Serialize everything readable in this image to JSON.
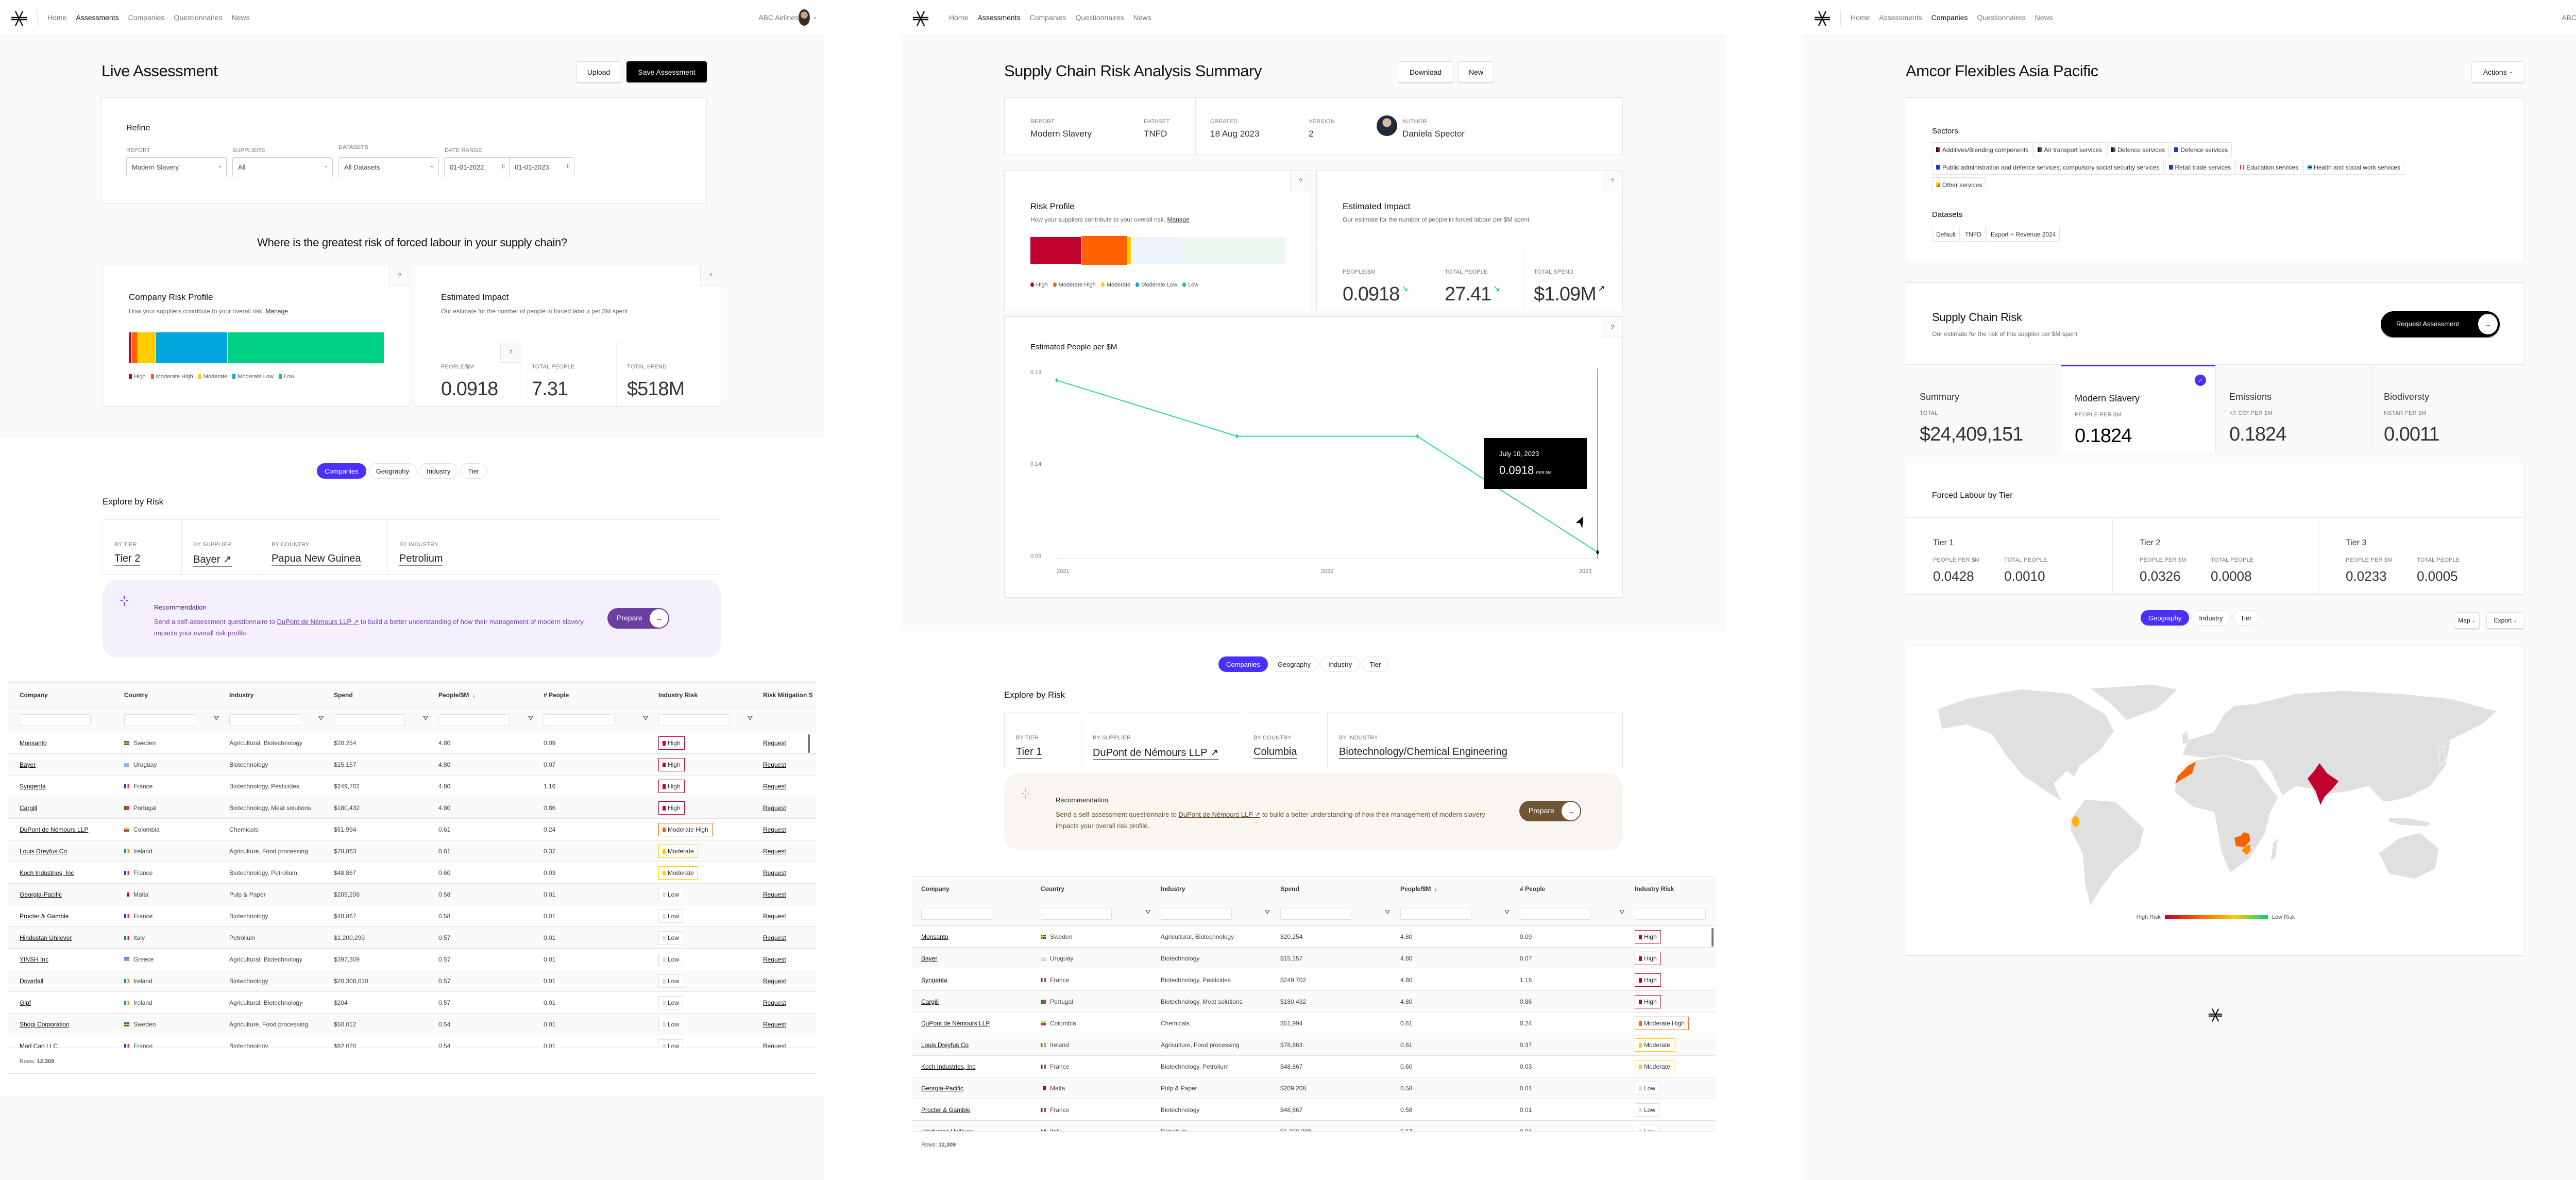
{
  "nav": {
    "items": [
      "Home",
      "Assessments",
      "Companies",
      "Questionnaires",
      "News"
    ],
    "account": "ABC Airlines",
    "icons": {
      "logo": "asterisk-logo",
      "avatar": "user-avatar",
      "caret": "chevron-down-icon"
    }
  },
  "colors": {
    "accent": "#4b2fff",
    "high": "#c0002d",
    "moderate_high": "#ff6000",
    "moderate": "#ffcc00",
    "moderate_low": "#00a8e0",
    "low": "#00d084",
    "low_badge": "#dddddd"
  },
  "risk_levels": [
    "High",
    "Moderate High",
    "Moderate",
    "Moderate Low",
    "Low"
  ],
  "live": {
    "active_nav": "Assessments",
    "title": "Live Assessment",
    "upload": "Upload",
    "save": "Save Assessment",
    "refine": {
      "title": "Refine",
      "fields": [
        {
          "label": "REPORT",
          "value": "Modern Slavery"
        },
        {
          "label": "SUPPLIERS",
          "value": "All"
        },
        {
          "label": "DATASETS",
          "value": "All Datasets"
        }
      ],
      "date_label": "DATE RANGE",
      "date_from": "01-01-2022",
      "date_to": "01-01-2023"
    },
    "question": "Where is the greatest risk of forced labour in your supply chain?",
    "profile": {
      "title": "Company Risk Profile",
      "subtitle": "How your suppliers contribute to your overall risk.",
      "manage": "Manage",
      "shares_pct": [
        1.3,
        2.3,
        6.8,
        28.3,
        61.3
      ]
    },
    "impact": {
      "title": "Estimated Impact",
      "subtitle": "Our estimate for the number of people in forced labour per $M spent",
      "stats": [
        {
          "label": "PEOPLE/$M",
          "value": "0.0918"
        },
        {
          "label": "TOTAL PEOPLE",
          "value": "7.31"
        },
        {
          "label": "TOTAL SPEND",
          "value": "$518M"
        }
      ]
    },
    "tabs": [
      "Companies",
      "Geography",
      "Industry",
      "Tier"
    ],
    "active_tab": "Companies",
    "explore": {
      "title": "Explore by Risk",
      "cols": [
        {
          "label": "BY TIER",
          "value": "Tier 2"
        },
        {
          "label": "BY SUPPLIER",
          "value": "Bayer ↗"
        },
        {
          "label": "BY COUNTRY",
          "value": "Papua New Guinea"
        },
        {
          "label": "BY INDUSTRY",
          "value": "Petrolium"
        }
      ]
    },
    "recommendation": {
      "title": "Recommendation",
      "text_before": "Send a self-assessment questionnaire to ",
      "link": "DuPont de Némours LLP ↗",
      "text_after": " to build a better understanding of how their management of modern slavery impacts your overall risk profile.",
      "button": "Prepare"
    }
  },
  "table": {
    "columns": [
      "Company",
      "Country",
      "Industry",
      "Spend",
      "People/$M",
      "# People",
      "Industry Risk",
      "Risk Mitigation S"
    ],
    "sort_column": "People/$M",
    "sort_direction": "descending",
    "action_label": "Request",
    "rows_label": "Rows:",
    "rows_total": "12,309",
    "rows": [
      [
        "Monsanto",
        "Sweden",
        "Agricultural, Biotechnology",
        "$20,254",
        "4.80",
        "0.09",
        "High"
      ],
      [
        "Bayer",
        "Uruguay",
        "Biotechnology",
        "$15,157",
        "4.80",
        "0.07",
        "High"
      ],
      [
        "Syngenta",
        "France",
        "Biotechnology, Pesticides",
        "$249,702",
        "4.80",
        "1.16",
        "High"
      ],
      [
        "Cargill",
        "Portugal",
        "Biotechnology, Meat solutions",
        "$180,432",
        "4.80",
        "0.86",
        "High"
      ],
      [
        "DuPont de Némours LLP",
        "Colombia",
        "Chemicals",
        "$51,994",
        "0.61",
        "0.24",
        "Moderate High"
      ],
      [
        "Louis Dreyfus Co",
        "Ireland",
        "Agriculture, Food processing",
        "$78,863",
        "0.61",
        "0.37",
        "Moderate"
      ],
      [
        "Koch Industries, Inc",
        "France",
        "Biotechnology, Petrolium",
        "$48,867",
        "0.60",
        "0.03",
        "Moderate"
      ],
      [
        "Georgia-Pacific",
        "Malta",
        "Pulp & Paper",
        "$209,208",
        "0.58",
        "0.01",
        "Low"
      ],
      [
        "Procter & Gamble",
        "France",
        "Biotechnology",
        "$48,867",
        "0.58",
        "0.01",
        "Low"
      ],
      [
        "Hindustan Unilever",
        "Italy",
        "Petrolium",
        "$1,200,299",
        "0.57",
        "0.01",
        "Low"
      ],
      [
        "YINSH Inc",
        "Greece",
        "Agricultural, Biotechnology",
        "$397,309",
        "0.57",
        "0.01",
        "Low"
      ],
      [
        "Downfall",
        "Ireland",
        "Biotechnology",
        "$20,308,010",
        "0.57",
        "0.01",
        "Low"
      ],
      [
        "Gipf",
        "Ireland",
        "Agricultural, Biotechnology",
        "$204",
        "0.57",
        "0.01",
        "Low"
      ],
      [
        "Shogi Corporation",
        "Sweden",
        "Agriculture, Food processing",
        "$50,012",
        "0.54",
        "0.01",
        "Low"
      ],
      [
        "Mad Cab LLC",
        "France",
        "Biotechnology",
        "$82,020",
        "0.54",
        "0.01",
        "Low"
      ]
    ]
  },
  "summary": {
    "active_nav": "Assessments",
    "title": "Supply Chain Risk Analysis Summary",
    "download": "Download",
    "new": "New",
    "meta": [
      {
        "label": "REPORT",
        "value": "Modern Slavery"
      },
      {
        "label": "DATASET",
        "value": "TNFD"
      },
      {
        "label": "CREATED",
        "value": "18 Aug 2023"
      },
      {
        "label": "VERSION",
        "value": "2"
      },
      {
        "label": "AUTHOR",
        "value": "Daniela Spector"
      }
    ],
    "profile": {
      "title": "Risk Profile",
      "subtitle": "How your suppliers contribute to your overall risk.",
      "manage": "Manage",
      "shares_pct": [
        20.0,
        18.0,
        1.5,
        20.3,
        40.2
      ],
      "highlighted": "Moderate High"
    },
    "impact": {
      "title": "Estimated Impact",
      "subtitle": "Our estimate for the number of people in forced labour per $M spent",
      "stats": [
        {
          "label": "PEOPLE/$M",
          "value": "0.0918",
          "trend": "down"
        },
        {
          "label": "TOTAL PEOPLE",
          "value": "27.41",
          "trend": "down"
        },
        {
          "label": "TOTAL SPEND",
          "value": "$1.09M",
          "trend": "up"
        }
      ]
    },
    "tabs": [
      "Companies",
      "Geography",
      "Industry",
      "Tier"
    ],
    "active_tab": "Companies",
    "explore": {
      "title": "Explore by Risk",
      "cols": [
        {
          "label": "BY TIER",
          "value": "Tier 1"
        },
        {
          "label": "BY SUPPLIER",
          "value": "DuPont de Némours LLP ↗"
        },
        {
          "label": "BY COUNTRY",
          "value": "Columbia"
        },
        {
          "label": "BY INDUSTRY",
          "value": "Biotechnology/Chemical Engineering"
        }
      ]
    },
    "recommendation": {
      "title": "Recommendation",
      "text_before": "Send a self-assessment questionnaire to ",
      "link": "DuPont de Némours LLP ↗",
      "text_after": " to build a better understanding of how their management of modern slavery impacts your overall risk profile.",
      "button": "Prepare"
    }
  },
  "chart_data": {
    "type": "line",
    "title": "Estimated People per $M",
    "x": [
      "2021-01",
      "2021-09",
      "2022-05",
      "2023-01"
    ],
    "y": [
      0.1855,
      0.155,
      0.155,
      0.0918
    ],
    "x_ticks": [
      "2021",
      "2022",
      "2023"
    ],
    "y_ticks": [
      "0.19",
      "0.14",
      "0.09"
    ],
    "ylim": [
      0.09,
      0.19
    ],
    "grid": false,
    "line_color": "#2fd6a0",
    "tooltip": {
      "date": "July 10, 2023",
      "value": "0.0918",
      "unit": "PER $M"
    }
  },
  "company": {
    "active_nav": "Companies",
    "title": "Amcor Flexibles Asia Pacific",
    "actions": "Actions",
    "sectors_title": "Sectors",
    "sectors": [
      "Additives/Blending components",
      "Air transport services",
      "Defence services",
      "Defence services",
      "Public administration and defence services; compulsory social security services",
      "Retail trade services",
      "Education services",
      "Health and social work services",
      "Other services"
    ],
    "datasets_title": "Datasets",
    "datasets": [
      "Default",
      "TNFD",
      "Export + Revenue 2024"
    ],
    "risk": {
      "title": "Supply Chain Risk",
      "subtitle": "Our estimate for the risk of this supplier per $M spent",
      "button": "Request Assessment",
      "active": "Modern Slavery",
      "tabs": [
        {
          "title": "Summary",
          "label": "TOTAL",
          "value": "$24,409,151"
        },
        {
          "title": "Modern Slavery",
          "label": "PEOPLE PER $M",
          "value": "0.1824"
        },
        {
          "title": "Emissions",
          "label": "KT CO² PER $M",
          "value": "0.1824"
        },
        {
          "title": "Biodiversty",
          "label": "nSTAR PER $M",
          "value": "0.0011"
        }
      ]
    },
    "tiers": {
      "title": "Forced Labour by Tier",
      "items": [
        {
          "name": "Tier 1",
          "ppl_label": "PEOPLE PER $M",
          "ppl": "0.0428",
          "tot_label": "TOTAL PEOPLE",
          "tot": "0.0010"
        },
        {
          "name": "Tier 2",
          "ppl_label": "PEOPLE PER $M",
          "ppl": "0.0326",
          "tot_label": "TOTAL PEOPLE",
          "tot": "0.0008"
        },
        {
          "name": "Tier 3",
          "ppl_label": "PEOPLE PER $M",
          "ppl": "0.0233",
          "tot_label": "TOTAL PEOPLE",
          "tot": "0.0005"
        }
      ]
    },
    "tabs": [
      "Geography",
      "Industry",
      "Tier"
    ],
    "active_tab": "Geography",
    "map_button": "Map",
    "export_button": "Export",
    "map_legend": {
      "high": "High Risk",
      "low": "Low Risk"
    }
  }
}
